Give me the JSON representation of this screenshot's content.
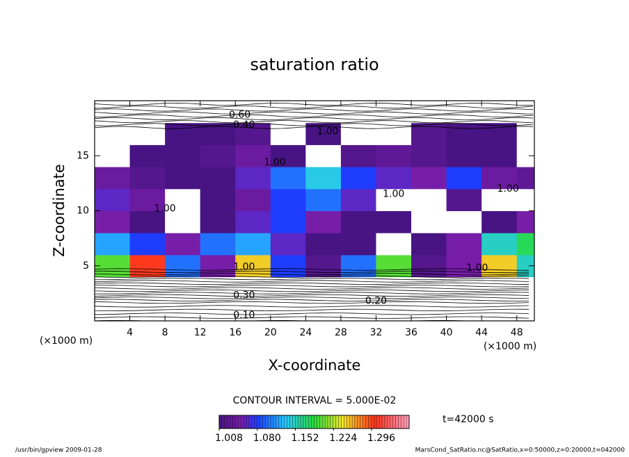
{
  "chart_data": {
    "type": "contour",
    "title": "saturation ratio",
    "x_label": "X-coordinate",
    "y_label": "Z-coordinate",
    "x_unit": "(×1000 m)",
    "y_unit": "(×1000 m)",
    "xlim": [
      0,
      50
    ],
    "ylim": [
      0,
      20
    ],
    "xticks": [
      4,
      8,
      12,
      16,
      20,
      24,
      28,
      32,
      36,
      40,
      44,
      48
    ],
    "yticks": [
      5,
      10,
      15
    ],
    "x": [
      2,
      6,
      10,
      14,
      18,
      22,
      26,
      30,
      34,
      38,
      42,
      46,
      50
    ],
    "z": [
      1,
      3,
      5,
      7,
      9,
      11,
      13,
      15,
      17,
      19
    ],
    "values": [
      [
        0.15,
        0.15,
        0.15,
        0.15,
        0.15,
        0.15,
        0.15,
        0.15,
        0.15,
        0.15,
        0.15,
        0.15,
        0.15
      ],
      [
        0.25,
        0.25,
        0.25,
        0.25,
        0.25,
        0.25,
        0.25,
        0.25,
        0.25,
        0.25,
        0.25,
        0.25,
        0.25
      ],
      [
        1.2,
        1.3,
        1.1,
        1.05,
        1.25,
        1.08,
        1.02,
        1.1,
        1.2,
        1.02,
        1.05,
        1.25,
        1.15
      ],
      [
        1.12,
        1.08,
        1.05,
        1.1,
        1.12,
        1.06,
        1.01,
        1.01,
        0.98,
        1.01,
        1.05,
        1.15,
        1.18
      ],
      [
        1.05,
        1.01,
        0.97,
        1.01,
        1.06,
        1.08,
        1.05,
        1.01,
        1.01,
        0.98,
        0.97,
        1.01,
        1.05
      ],
      [
        1.06,
        1.04,
        0.98,
        1.01,
        1.04,
        1.08,
        1.1,
        1.06,
        0.97,
        0.96,
        1.02,
        0.97,
        0.98
      ],
      [
        1.04,
        1.02,
        1.01,
        1.01,
        1.06,
        1.1,
        1.14,
        1.08,
        1.06,
        1.05,
        1.08,
        1.04,
        1.03
      ],
      [
        0.98,
        1.01,
        1.01,
        1.02,
        1.04,
        1.01,
        0.96,
        1.02,
        1.03,
        1.02,
        1.01,
        1.01,
        0.97
      ],
      [
        0.97,
        0.98,
        1.01,
        1.01,
        1.02,
        0.98,
        1.01,
        0.97,
        0.98,
        1.02,
        1.01,
        1.01,
        0.97
      ],
      [
        0.6,
        0.6,
        0.6,
        0.6,
        0.6,
        0.6,
        0.6,
        0.6,
        0.6,
        0.6,
        0.6,
        0.6,
        0.6
      ]
    ],
    "contour_labels": [
      {
        "text": "0.60",
        "x": 16.5,
        "z": 18.7
      },
      {
        "text": "0.40",
        "x": 17,
        "z": 17.8
      },
      {
        "text": "1.00",
        "x": 26.5,
        "z": 17.2
      },
      {
        "text": "1.00",
        "x": 20.5,
        "z": 14.4
      },
      {
        "text": "1.00",
        "x": 34,
        "z": 11.5
      },
      {
        "text": "1.00",
        "x": 47,
        "z": 12
      },
      {
        "text": "1.00",
        "x": 8,
        "z": 10.2
      },
      {
        "text": "1.00",
        "x": 17,
        "z": 4.9
      },
      {
        "text": "0.30",
        "x": 17,
        "z": 2.3
      },
      {
        "text": "1.00",
        "x": 43.5,
        "z": 4.8
      },
      {
        "text": "0.20",
        "x": 32,
        "z": 1.8
      },
      {
        "text": "0.10",
        "x": 17,
        "z": 0.5
      }
    ],
    "contour_interval": "CONTOUR INTERVAL = 5.000E-02",
    "time_label": "t=42000 s",
    "colorbar": {
      "lim": [
        1.008,
        1.367
      ],
      "ticks": [
        1.008,
        {
          "value": 1.08,
          "label": "1.080"
        },
        1.152,
        1.224,
        1.296
      ]
    },
    "footer_left": "/usr/bin/gpview  2009-01-28",
    "footer_right": "MarsCond_SatRatio.nc@SatRatio,x=0:50000,z=0:20000,t=042000"
  }
}
